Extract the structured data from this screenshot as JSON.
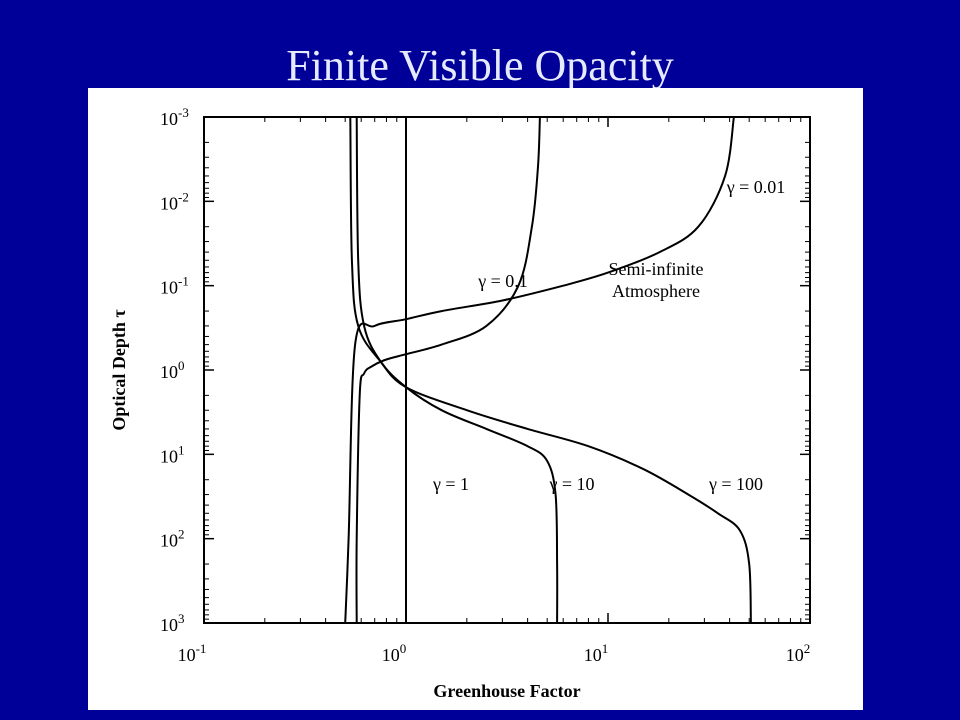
{
  "slide": {
    "title": "Finite Visible Opacity",
    "background": "#000099",
    "title_color": "#e6eaff"
  },
  "chart_data": {
    "type": "line",
    "title": "",
    "xlabel": "Greenhouse Factor",
    "ylabel": "Optical Depth τ",
    "x_scale": "log",
    "y_scale": "log",
    "y_inverted": true,
    "xlim": [
      0.1,
      100
    ],
    "ylim": [
      0.001,
      1000
    ],
    "x_ticks": [
      {
        "value": 0.1,
        "base": "10",
        "exp": "-1"
      },
      {
        "value": 1,
        "base": "10",
        "exp": "0"
      },
      {
        "value": 10,
        "base": "10",
        "exp": "1"
      },
      {
        "value": 100,
        "base": "10",
        "exp": "2"
      }
    ],
    "y_ticks": [
      {
        "value": 0.001,
        "base": "10",
        "exp": "-3"
      },
      {
        "value": 0.01,
        "base": "10",
        "exp": "-2"
      },
      {
        "value": 0.1,
        "base": "10",
        "exp": "-1"
      },
      {
        "value": 1,
        "base": "10",
        "exp": "0"
      },
      {
        "value": 10,
        "base": "10",
        "exp": "1"
      },
      {
        "value": 100,
        "base": "10",
        "exp": "2"
      },
      {
        "value": 1000,
        "base": "10",
        "exp": "3"
      }
    ],
    "grid": false,
    "line_color": "#000000",
    "annotation": [
      "Semi-infinite",
      "Atmosphere"
    ],
    "series": [
      {
        "name": "γ = 0.01",
        "x": [
          0.5,
          0.52,
          0.56,
          0.7,
          1.0,
          1.5,
          3.0,
          6.0,
          10,
          18,
          28,
          38,
          42
        ],
        "y": [
          1000,
          100,
          0.5,
          0.3,
          0.25,
          0.2,
          0.15,
          0.1,
          0.07,
          0.04,
          0.02,
          0.005,
          0.001
        ]
      },
      {
        "name": "γ = 0.1",
        "x": [
          0.57,
          0.57,
          0.59,
          0.62,
          0.68,
          0.8,
          1.0,
          1.5,
          2.5,
          3.6,
          4.2,
          4.5,
          4.6
        ],
        "y": [
          1000,
          100,
          2,
          1.1,
          0.9,
          0.75,
          0.65,
          0.5,
          0.3,
          0.1,
          0.02,
          0.004,
          0.001
        ]
      },
      {
        "name": "γ = 1",
        "x": [
          1,
          1
        ],
        "y": [
          0.001,
          1000
        ]
      },
      {
        "name": "γ = 10",
        "x": [
          0.57,
          0.58,
          0.62,
          0.75,
          1.0,
          1.5,
          2.5,
          4.0,
          5.0,
          5.5,
          5.6,
          5.6
        ],
        "y": [
          0.001,
          0.05,
          0.3,
          0.8,
          1.6,
          3.0,
          5.0,
          8.0,
          12,
          30,
          200,
          1000
        ]
      },
      {
        "name": "γ = 100",
        "x": [
          0.53,
          0.54,
          0.58,
          0.75,
          1.0,
          2.0,
          4.0,
          8.0,
          15,
          25,
          35,
          45,
          50,
          51
        ],
        "y": [
          0.001,
          0.05,
          0.3,
          0.8,
          1.6,
          3.0,
          5.0,
          8.0,
          15,
          30,
          50,
          80,
          200,
          1000
        ]
      }
    ]
  }
}
